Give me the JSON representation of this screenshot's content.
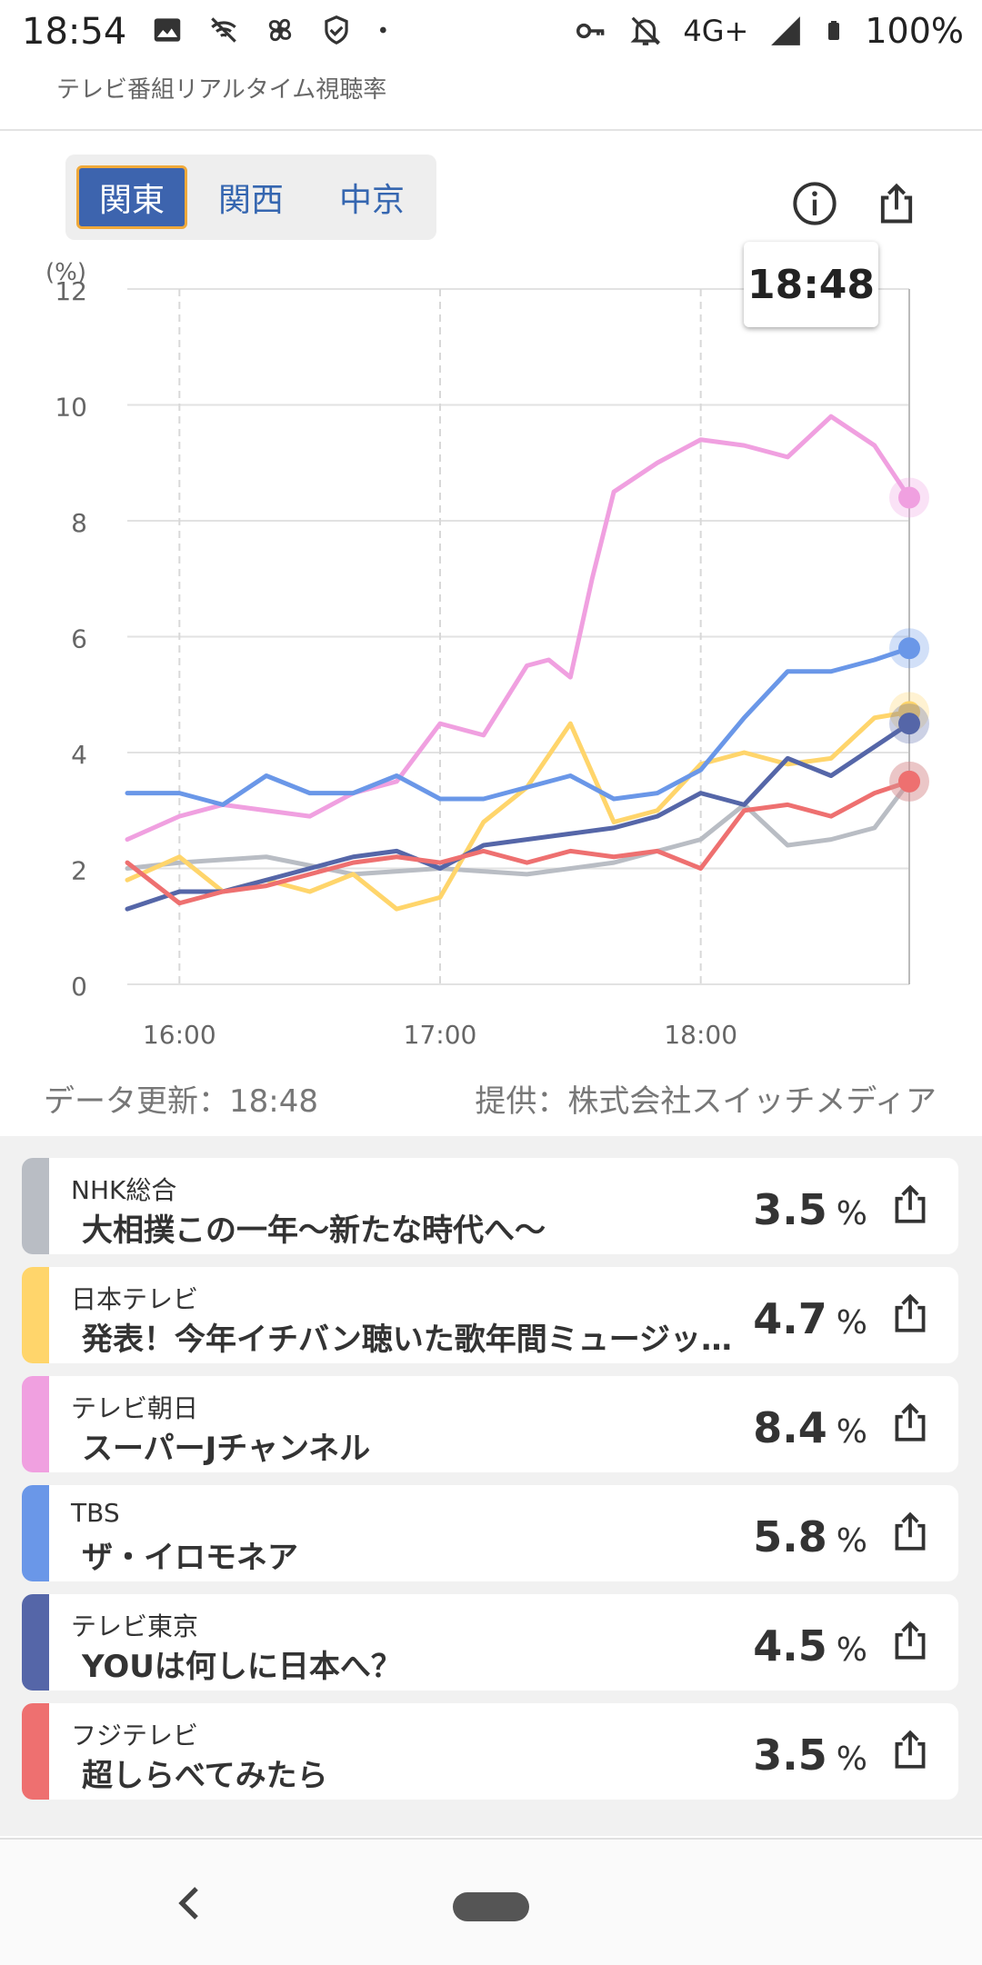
{
  "status_bar": {
    "time": "18:54",
    "network": "4G+",
    "battery": "100%",
    "left_icons": [
      "image-icon",
      "wifi-off-icon",
      "pinwheel-icon",
      "shield-check-icon",
      "dot-icon"
    ],
    "right_icons": [
      "key-icon",
      "mute-bell-icon",
      "signal-icon",
      "battery-icon"
    ]
  },
  "header": {
    "title": "テレビ番組リアルタイム視聴率"
  },
  "regions": {
    "items": [
      {
        "label": "関東",
        "active": true
      },
      {
        "label": "関西",
        "active": false
      },
      {
        "label": "中京",
        "active": false
      }
    ]
  },
  "toolbar": {
    "info_icon": "info-icon",
    "share_icon": "share-icon"
  },
  "tooltip": {
    "time": "18:48"
  },
  "chart_data": {
    "type": "line",
    "ylabel": "(%)",
    "ylim": [
      0,
      12
    ],
    "yticks": [
      "0",
      "2",
      "4",
      "6",
      "8",
      "10",
      "12"
    ],
    "xticks": [
      "16:00",
      "17:00",
      "18:00"
    ],
    "grid": true,
    "series": [
      {
        "name": "NHK総合",
        "color": "#b9bdc4",
        "x": [
          "15:48",
          "16:00",
          "16:20",
          "16:40",
          "17:00",
          "17:20",
          "17:40",
          "18:00",
          "18:10",
          "18:20",
          "18:30",
          "18:40",
          "18:48"
        ],
        "values": [
          2.0,
          2.1,
          2.2,
          1.9,
          2.0,
          1.9,
          2.1,
          2.5,
          3.1,
          2.4,
          2.5,
          2.7,
          3.5
        ]
      },
      {
        "name": "日本テレビ",
        "color": "#ffd56b",
        "x": [
          "15:48",
          "16:00",
          "16:10",
          "16:20",
          "16:30",
          "16:40",
          "16:50",
          "17:00",
          "17:10",
          "17:20",
          "17:30",
          "17:40",
          "17:50",
          "18:00",
          "18:10",
          "18:20",
          "18:30",
          "18:40",
          "18:48"
        ],
        "values": [
          1.8,
          2.2,
          1.6,
          1.8,
          1.6,
          1.9,
          1.3,
          1.5,
          2.8,
          3.4,
          4.5,
          2.8,
          3.0,
          3.8,
          4.0,
          3.8,
          3.9,
          4.6,
          4.7
        ]
      },
      {
        "name": "テレビ朝日",
        "color": "#f0a0e0",
        "x": [
          "15:48",
          "16:00",
          "16:10",
          "16:20",
          "16:30",
          "16:40",
          "16:50",
          "17:00",
          "17:10",
          "17:20",
          "17:25",
          "17:30",
          "17:35",
          "17:40",
          "17:50",
          "18:00",
          "18:10",
          "18:20",
          "18:30",
          "18:40",
          "18:48"
        ],
        "values": [
          2.5,
          2.9,
          3.1,
          3.0,
          2.9,
          3.3,
          3.5,
          4.5,
          4.3,
          5.5,
          5.6,
          5.3,
          7.0,
          8.5,
          9.0,
          9.4,
          9.3,
          9.1,
          9.8,
          9.3,
          8.4
        ]
      },
      {
        "name": "TBS",
        "color": "#6a97e8",
        "x": [
          "15:48",
          "16:00",
          "16:10",
          "16:20",
          "16:30",
          "16:40",
          "16:50",
          "17:00",
          "17:10",
          "17:20",
          "17:30",
          "17:40",
          "17:50",
          "18:00",
          "18:10",
          "18:20",
          "18:30",
          "18:40",
          "18:48"
        ],
        "values": [
          3.3,
          3.3,
          3.1,
          3.6,
          3.3,
          3.3,
          3.6,
          3.2,
          3.2,
          3.4,
          3.6,
          3.2,
          3.3,
          3.7,
          4.6,
          5.4,
          5.4,
          5.6,
          5.8
        ]
      },
      {
        "name": "テレビ東京",
        "color": "#5566a8",
        "x": [
          "15:48",
          "16:00",
          "16:10",
          "16:20",
          "16:30",
          "16:40",
          "16:50",
          "17:00",
          "17:10",
          "17:20",
          "17:30",
          "17:40",
          "17:50",
          "18:00",
          "18:10",
          "18:20",
          "18:30",
          "18:40",
          "18:48"
        ],
        "values": [
          1.3,
          1.6,
          1.6,
          1.8,
          2.0,
          2.2,
          2.3,
          2.0,
          2.4,
          2.5,
          2.6,
          2.7,
          2.9,
          3.3,
          3.1,
          3.9,
          3.6,
          4.1,
          4.5
        ]
      },
      {
        "name": "フジテレビ",
        "color": "#ee7070",
        "x": [
          "15:48",
          "16:00",
          "16:10",
          "16:20",
          "16:30",
          "16:40",
          "16:50",
          "17:00",
          "17:10",
          "17:20",
          "17:30",
          "17:40",
          "17:50",
          "18:00",
          "18:10",
          "18:20",
          "18:30",
          "18:40",
          "18:48"
        ],
        "values": [
          2.1,
          1.4,
          1.6,
          1.7,
          1.9,
          2.1,
          2.2,
          2.1,
          2.3,
          2.1,
          2.3,
          2.2,
          2.3,
          2.0,
          3.0,
          3.1,
          2.9,
          3.3,
          3.5
        ]
      }
    ]
  },
  "footer": {
    "update": "データ更新：18:48",
    "provider": "提供：株式会社スイッチメディア"
  },
  "channels": [
    {
      "channel": "NHK総合",
      "program": "大相撲この一年〜新たな時代へ〜",
      "rating": "3.5",
      "unit": "%",
      "color": "#b9bdc4"
    },
    {
      "channel": "日本テレビ",
      "program": "発表！今年イチバン聴いた歌年間ミュージックアワード",
      "rating": "4.7",
      "unit": "%",
      "color": "#ffd56b"
    },
    {
      "channel": "テレビ朝日",
      "program": "スーパーJチャンネル",
      "rating": "8.4",
      "unit": "%",
      "color": "#f0a0e0"
    },
    {
      "channel": "TBS",
      "program": "ザ・イロモネア",
      "rating": "5.8",
      "unit": "%",
      "color": "#6a97e8"
    },
    {
      "channel": "テレビ東京",
      "program": "YOUは何しに日本へ？",
      "rating": "4.5",
      "unit": "%",
      "color": "#5566a8"
    },
    {
      "channel": "フジテレビ",
      "program": "超しらべてみたら",
      "rating": "3.5",
      "unit": "%",
      "color": "#ee7070"
    }
  ],
  "nav": {
    "back_icon": "back-icon",
    "home_icon": "home-pill-icon"
  }
}
